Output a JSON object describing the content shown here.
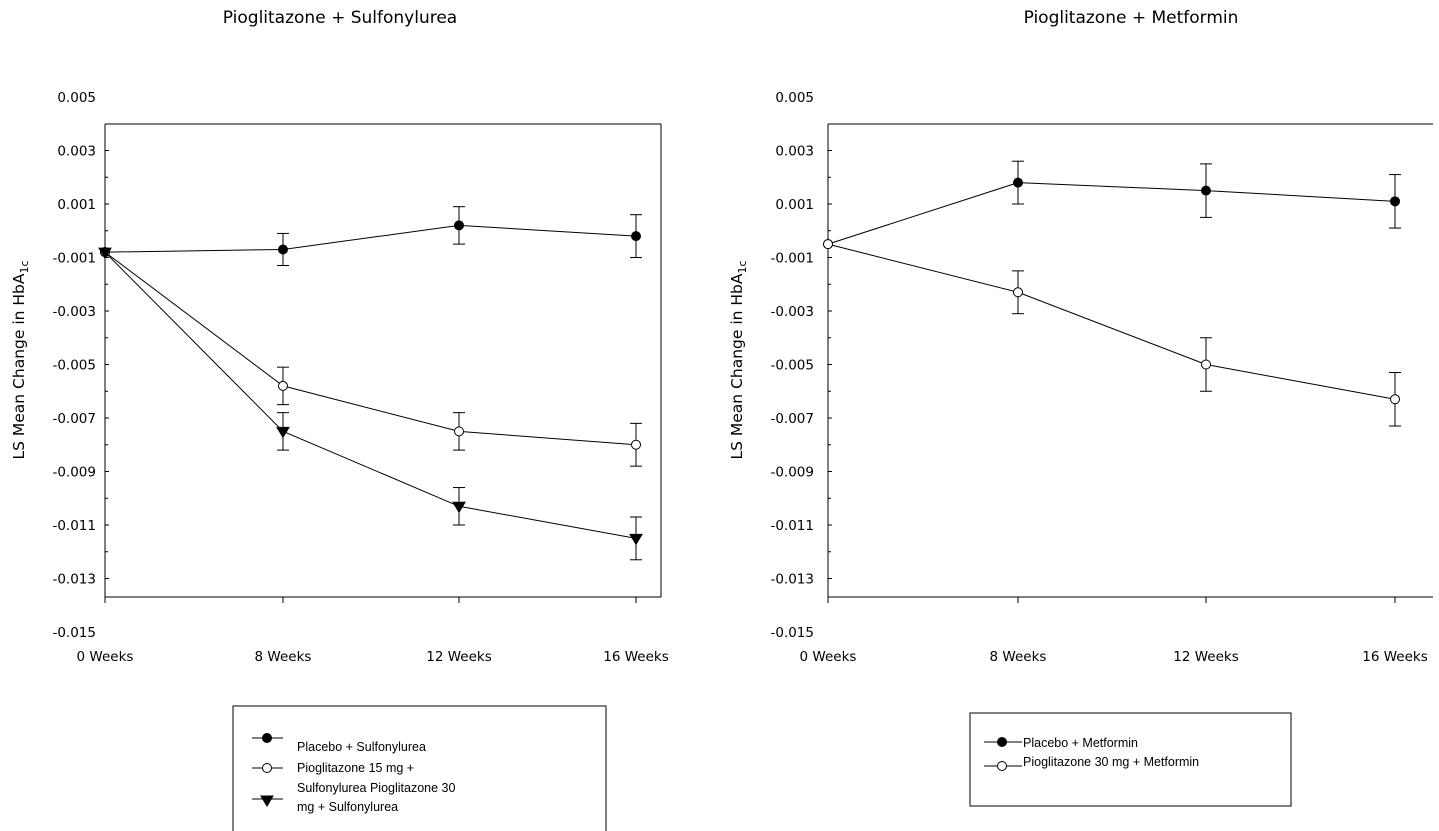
{
  "chart_data": [
    {
      "type": "line",
      "title": "Pioglitazone + Sulfonylurea",
      "ylabel": "LS Mean Change in HbA",
      "ylabel_sub": "1c",
      "xlabel": "",
      "categories": [
        "0 Weeks",
        "8 Weeks",
        "12 Weeks",
        "16 Weeks"
      ],
      "ylim": [
        -0.015,
        0.005
      ],
      "yticks": [
        "0.005",
        "0.003",
        "0.001",
        "-0.001",
        "-0.003",
        "-0.005",
        "-0.007",
        "-0.009",
        "-0.011",
        "-0.013",
        "-0.015"
      ],
      "series": [
        {
          "name": "Placebo + Sulfonylurea",
          "marker": "filled-circle",
          "values": [
            -0.0008,
            -0.0007,
            0.0002,
            -0.0002
          ],
          "err": [
            0,
            0.0006,
            0.0007,
            0.0008
          ]
        },
        {
          "name": "Pioglitazone 15 mg + Sulfonylurea",
          "marker": "open-circle",
          "values": [
            -0.0008,
            -0.0058,
            -0.0075,
            -0.008
          ],
          "err": [
            0,
            0.0007,
            0.0007,
            0.0008
          ]
        },
        {
          "name": "Pioglitazone 30 mg + Sulfonylurea",
          "marker": "filled-triangle-down",
          "values": [
            -0.0008,
            -0.0075,
            -0.0103,
            -0.0115
          ],
          "err": [
            0,
            0.0007,
            0.0007,
            0.0008
          ]
        }
      ],
      "legend": {
        "placement": "bottom",
        "lines": [
          {
            "marker": "filled-circle",
            "text": "Placebo + Sulfonylurea"
          },
          {
            "marker": "open-circle",
            "text": "Pioglitazone 15 mg +"
          },
          {
            "marker": "",
            "text": "Sulfonylurea Pioglitazone 30"
          },
          {
            "marker": "filled-triangle-down",
            "text": "mg + Sulfonylurea"
          }
        ]
      }
    },
    {
      "type": "line",
      "title": "Pioglitazone + Metformin",
      "ylabel": "LS Mean Change in HbA",
      "ylabel_sub": "1c",
      "xlabel": "",
      "categories": [
        "0 Weeks",
        "8 Weeks",
        "12 Weeks",
        "16 Weeks"
      ],
      "ylim": [
        -0.015,
        0.005
      ],
      "yticks": [
        "0.005",
        "0.003",
        "0.001",
        "-0.001",
        "-0.003",
        "-0.005",
        "-0.007",
        "-0.009",
        "-0.011",
        "-0.013",
        "-0.015"
      ],
      "series": [
        {
          "name": "Placebo + Metformin",
          "marker": "filled-circle",
          "values": [
            -0.0005,
            0.0018,
            0.0015,
            0.0011
          ],
          "err": [
            0,
            0.0008,
            0.001,
            0.001
          ]
        },
        {
          "name": "Pioglitazone 30 mg + Metformin",
          "marker": "open-circle",
          "values": [
            -0.0005,
            -0.0023,
            -0.005,
            -0.0063
          ],
          "err": [
            0,
            0.0008,
            0.001,
            0.001
          ]
        }
      ],
      "legend": {
        "placement": "bottom",
        "lines": [
          {
            "marker": "filled-circle",
            "text": "Placebo + Metformin"
          },
          {
            "marker": "open-circle",
            "text": "Pioglitazone 30 mg + Metformin"
          }
        ]
      }
    }
  ]
}
